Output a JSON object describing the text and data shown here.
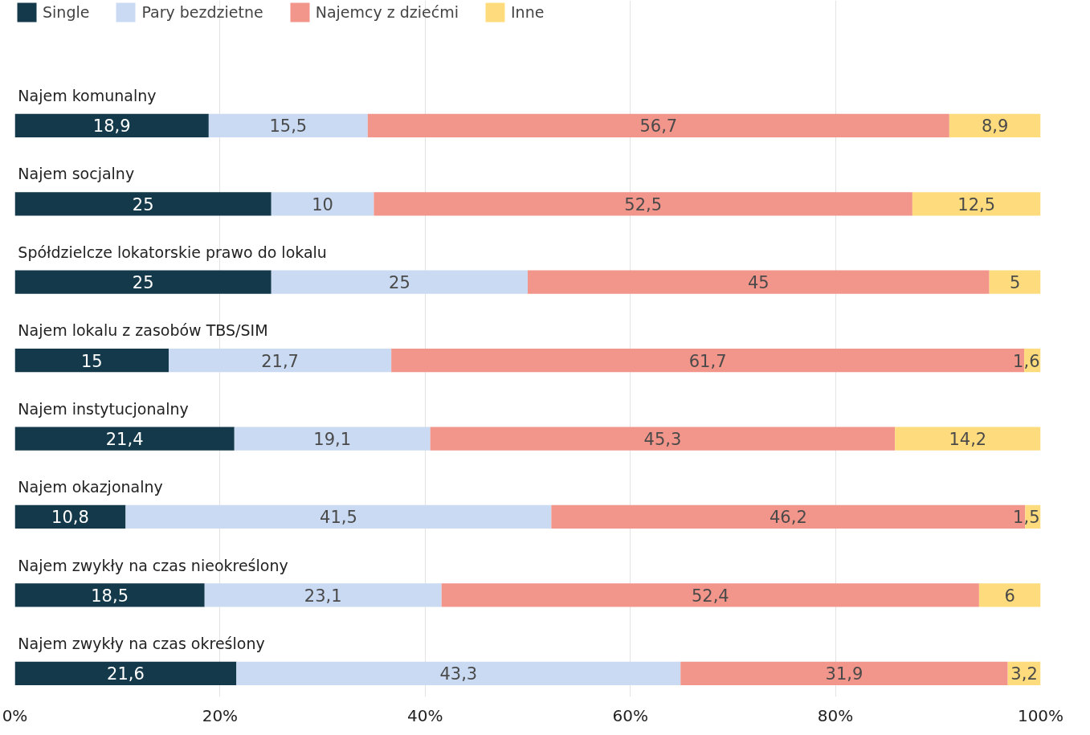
{
  "chart_data": {
    "type": "bar",
    "orientation": "horizontal",
    "stacked": true,
    "categories": [
      "Najem komunalny",
      "Najem socjalny",
      "Spółdzielcze lokatorskie prawo do lokalu",
      "Najem lokalu z zasobów TBS/SIM",
      "Najem instytucjonalny",
      "Najem okazjonalny",
      "Najem zwykły na czas nieokreślony",
      "Najem zwykły na czas określony"
    ],
    "series": [
      {
        "name": "Single",
        "color": "#14394a",
        "values": [
          18.9,
          25,
          25,
          15,
          21.4,
          10.8,
          18.5,
          21.6
        ],
        "value_labels": [
          "18,9",
          "25",
          "25",
          "15",
          "21,4",
          "10,8",
          "18,5",
          "21,6"
        ]
      },
      {
        "name": "Pary bezdzietne",
        "color": "#c9daf2",
        "values": [
          15.5,
          10,
          25,
          21.7,
          19.1,
          41.5,
          23.1,
          43.3
        ],
        "value_labels": [
          "15,5",
          "10",
          "25",
          "21,7",
          "19,1",
          "41,5",
          "23,1",
          "43,3"
        ]
      },
      {
        "name": "Najemcy z dziećmi",
        "color": "#f2958a",
        "values": [
          56.7,
          52.5,
          45,
          61.7,
          45.3,
          46.2,
          52.4,
          31.9
        ],
        "value_labels": [
          "56,7",
          "52,5",
          "45",
          "61,7",
          "45,3",
          "46,2",
          "52,4",
          "31,9"
        ]
      },
      {
        "name": "Inne",
        "color": "#fedc7d",
        "values": [
          8.9,
          12.5,
          5,
          1.6,
          14.2,
          1.5,
          6,
          3.2
        ],
        "value_labels": [
          "8,9",
          "12,5",
          "5",
          "1,6",
          "14,2",
          "1,5",
          "6",
          "3,2"
        ]
      }
    ],
    "xlim": [
      0,
      100
    ],
    "xticks": [
      {
        "value": 0,
        "label": "0%"
      },
      {
        "value": 20,
        "label": "20%"
      },
      {
        "value": 40,
        "label": "40%"
      },
      {
        "value": 60,
        "label": "60%"
      },
      {
        "value": 80,
        "label": "80%"
      },
      {
        "value": 100,
        "label": "100%"
      }
    ],
    "grid": "x",
    "legend": "top left",
    "tick_labels": "x"
  }
}
